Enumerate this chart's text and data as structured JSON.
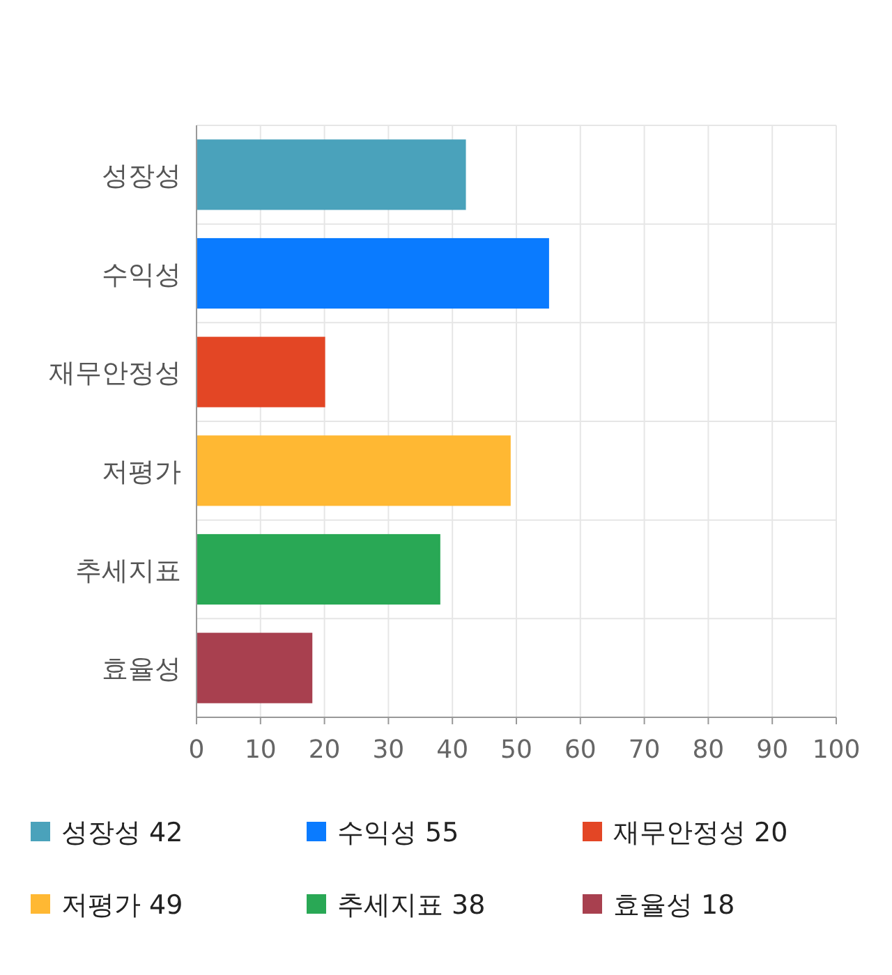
{
  "chart_data": {
    "type": "bar",
    "orientation": "horizontal",
    "stacked": true,
    "categories": [
      "성장성",
      "수익성",
      "재무안정성",
      "저평가",
      "추세지표",
      "효율성"
    ],
    "series": [
      {
        "name": "성장성 42",
        "color": "#4aa2bb",
        "values": [
          42,
          null,
          null,
          null,
          null,
          null
        ]
      },
      {
        "name": "수익성 55",
        "color": "#0a7bff",
        "values": [
          null,
          55,
          null,
          null,
          null,
          null
        ]
      },
      {
        "name": "재무안정성 20",
        "color": "#e34625",
        "values": [
          null,
          null,
          20,
          null,
          null,
          null
        ]
      },
      {
        "name": "저평가 49",
        "color": "#ffb833",
        "values": [
          null,
          null,
          null,
          49,
          null,
          null
        ]
      },
      {
        "name": "추세지표 38",
        "color": "#29a855",
        "values": [
          null,
          null,
          null,
          null,
          38,
          null
        ]
      },
      {
        "name": "효율성 18",
        "color": "#a8404f",
        "values": [
          null,
          null,
          null,
          null,
          null,
          18
        ]
      }
    ],
    "xlim": [
      0,
      100
    ],
    "xticks": [
      0,
      10,
      20,
      30,
      40,
      50,
      60,
      70,
      80,
      90,
      100
    ],
    "grid": true,
    "legend": "bottom"
  }
}
